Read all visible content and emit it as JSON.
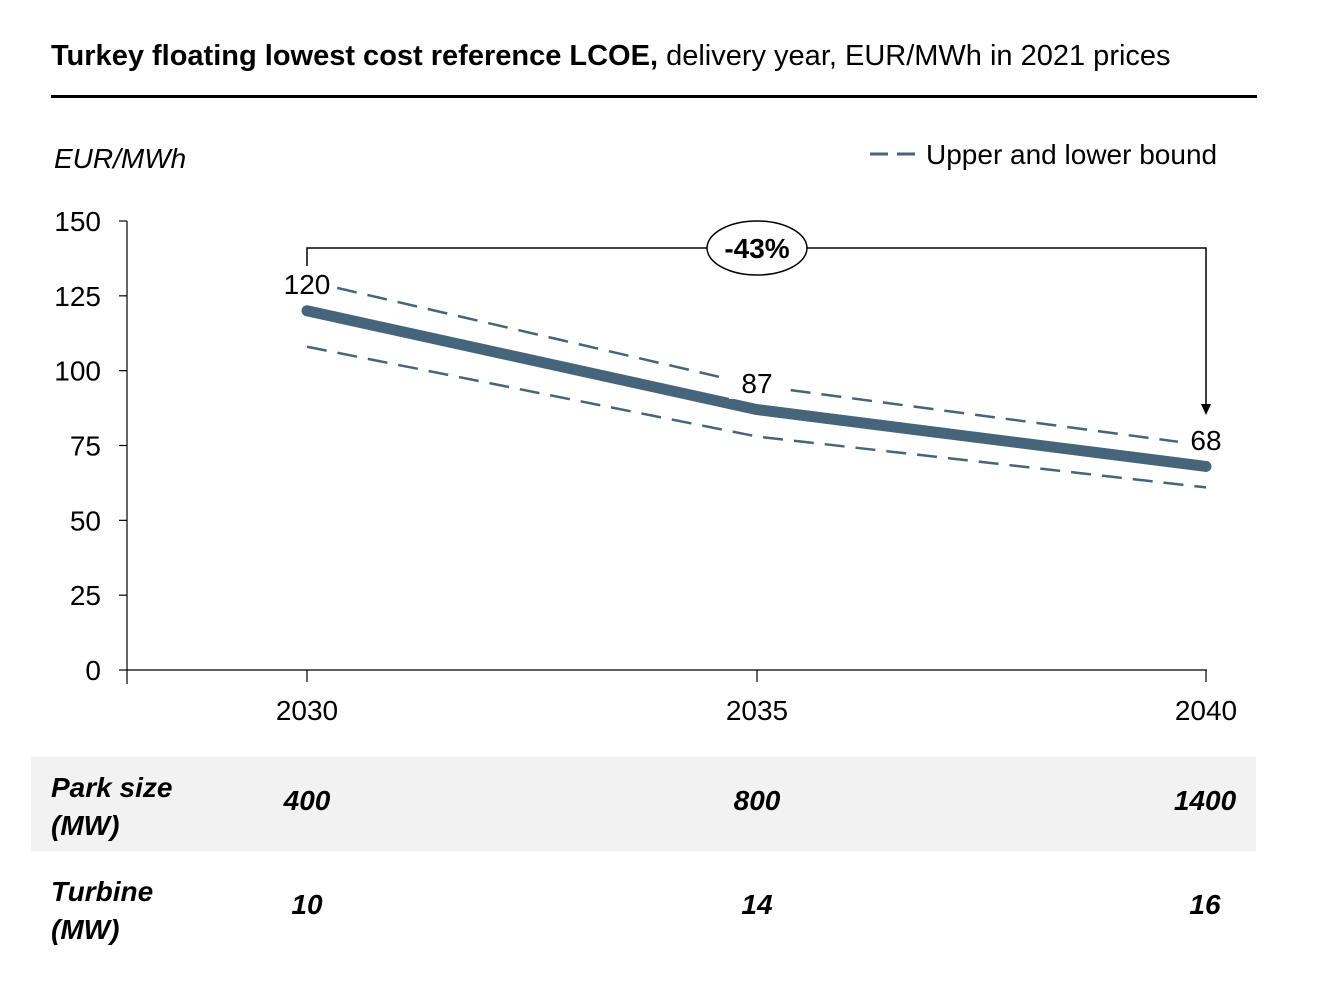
{
  "title": {
    "bold": "Turkey floating lowest cost reference LCOE,",
    "normal": " delivery year, EUR/MWh in 2021 prices"
  },
  "chart_data": {
    "type": "line",
    "ylabel": "EUR/MWh",
    "ylim": [
      0,
      150
    ],
    "yticks": [
      0,
      25,
      50,
      75,
      100,
      125,
      150
    ],
    "x": [
      "2030",
      "2035",
      "2040"
    ],
    "series": [
      {
        "name": "LCOE",
        "values": [
          120,
          87,
          68
        ],
        "color": "#46647a",
        "style": "solid"
      },
      {
        "name": "Upper bound",
        "values": [
          130,
          95,
          75
        ],
        "color": "#46647a",
        "style": "dashed"
      },
      {
        "name": "Lower bound",
        "values": [
          108,
          78,
          61
        ],
        "color": "#46647a",
        "style": "dashed"
      }
    ],
    "data_labels": [
      "120",
      "87",
      "68"
    ],
    "legend": {
      "label": "Upper and lower bound",
      "position": "top-right"
    },
    "annotation": {
      "text": "-43%"
    }
  },
  "table": {
    "rows": [
      {
        "label_line1": "Park size",
        "label_line2": "(MW)",
        "values": [
          "400",
          "800",
          "1400"
        ]
      },
      {
        "label_line1": "Turbine",
        "label_line2": "(MW)",
        "values": [
          "10",
          "14",
          "16"
        ]
      }
    ]
  }
}
